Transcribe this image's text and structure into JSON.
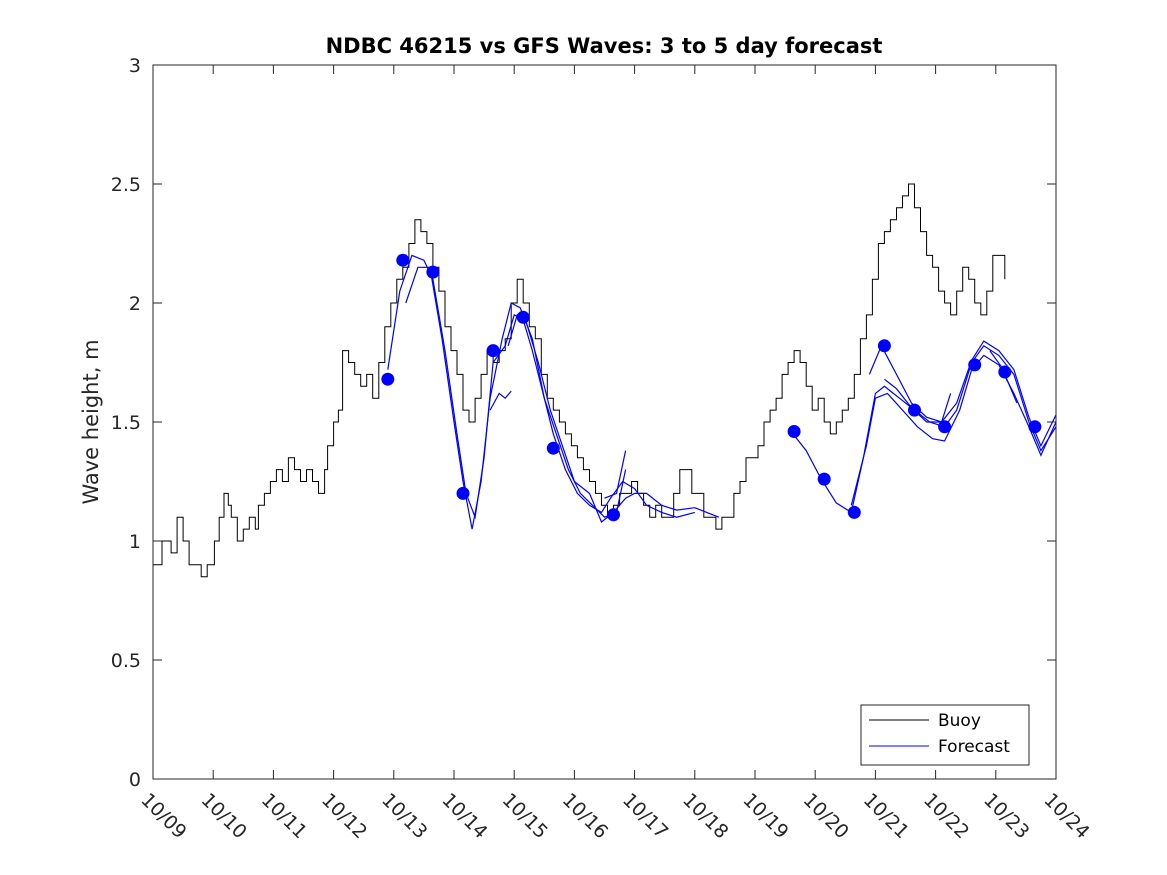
{
  "chart_data": {
    "type": "line",
    "title": "NDBC 46215 vs GFS Waves: 3 to 5 day forecast",
    "xlabel": "",
    "ylabel": "Wave height, m",
    "xlim_days": [
      0,
      15
    ],
    "ylim": [
      0,
      3
    ],
    "x_tick_labels": [
      "10/09",
      "10/10",
      "10/11",
      "10/12",
      "10/13",
      "10/14",
      "10/15",
      "10/16",
      "10/17",
      "10/18",
      "10/19",
      "10/20",
      "10/21",
      "10/22",
      "10/23",
      "10/24"
    ],
    "y_ticks": [
      0,
      0.5,
      1,
      1.5,
      2,
      2.5,
      3
    ],
    "y_tick_labels": [
      "0",
      "0.5",
      "1",
      "1.5",
      "2",
      "2.5",
      "3"
    ],
    "legend": {
      "position": "bottom-right",
      "entries": [
        "Buoy",
        "Forecast"
      ]
    },
    "colors": {
      "buoy": "#000000",
      "forecast": "#0000ff",
      "axis": "#262626"
    },
    "buoy": {
      "name": "Buoy",
      "points": [
        [
          0.0,
          0.9
        ],
        [
          0.15,
          1.0
        ],
        [
          0.3,
          0.95
        ],
        [
          0.4,
          1.1
        ],
        [
          0.5,
          1.0
        ],
        [
          0.6,
          0.9
        ],
        [
          0.7,
          0.9
        ],
        [
          0.8,
          0.85
        ],
        [
          0.9,
          0.9
        ],
        [
          0.98,
          0.9
        ],
        [
          1.02,
          1.0
        ],
        [
          1.1,
          1.1
        ],
        [
          1.18,
          1.2
        ],
        [
          1.25,
          1.15
        ],
        [
          1.3,
          1.1
        ],
        [
          1.4,
          1.0
        ],
        [
          1.5,
          1.05
        ],
        [
          1.6,
          1.1
        ],
        [
          1.7,
          1.05
        ],
        [
          1.75,
          1.15
        ],
        [
          1.85,
          1.2
        ],
        [
          1.95,
          1.25
        ],
        [
          2.05,
          1.3
        ],
        [
          2.15,
          1.25
        ],
        [
          2.25,
          1.35
        ],
        [
          2.35,
          1.3
        ],
        [
          2.45,
          1.25
        ],
        [
          2.55,
          1.3
        ],
        [
          2.65,
          1.25
        ],
        [
          2.75,
          1.2
        ],
        [
          2.85,
          1.3
        ],
        [
          2.9,
          1.4
        ],
        [
          3.0,
          1.5
        ],
        [
          3.08,
          1.55
        ],
        [
          3.15,
          1.8
        ],
        [
          3.25,
          1.75
        ],
        [
          3.35,
          1.7
        ],
        [
          3.45,
          1.65
        ],
        [
          3.55,
          1.7
        ],
        [
          3.65,
          1.6
        ],
        [
          3.75,
          1.75
        ],
        [
          3.85,
          1.9
        ],
        [
          3.95,
          2.0
        ],
        [
          4.05,
          2.1
        ],
        [
          4.15,
          2.15
        ],
        [
          4.25,
          2.25
        ],
        [
          4.35,
          2.35
        ],
        [
          4.45,
          2.3
        ],
        [
          4.55,
          2.25
        ],
        [
          4.65,
          2.15
        ],
        [
          4.75,
          2.05
        ],
        [
          4.85,
          1.9
        ],
        [
          4.95,
          1.8
        ],
        [
          5.05,
          1.7
        ],
        [
          5.15,
          1.55
        ],
        [
          5.25,
          1.5
        ],
        [
          5.35,
          1.6
        ],
        [
          5.45,
          1.7
        ],
        [
          5.55,
          1.8
        ],
        [
          5.65,
          1.75
        ],
        [
          5.75,
          1.8
        ],
        [
          5.85,
          1.85
        ],
        [
          5.95,
          2.0
        ],
        [
          6.05,
          2.1
        ],
        [
          6.15,
          2.0
        ],
        [
          6.25,
          1.9
        ],
        [
          6.35,
          1.85
        ],
        [
          6.45,
          1.7
        ],
        [
          6.55,
          1.6
        ],
        [
          6.65,
          1.55
        ],
        [
          6.75,
          1.5
        ],
        [
          6.85,
          1.45
        ],
        [
          6.95,
          1.4
        ],
        [
          7.05,
          1.35
        ],
        [
          7.15,
          1.3
        ],
        [
          7.25,
          1.25
        ],
        [
          7.35,
          1.2
        ],
        [
          7.45,
          1.15
        ],
        [
          7.55,
          1.1
        ],
        [
          7.65,
          1.15
        ],
        [
          7.75,
          1.2
        ],
        [
          7.85,
          1.2
        ],
        [
          7.95,
          1.25
        ],
        [
          8.05,
          1.2
        ],
        [
          8.15,
          1.15
        ],
        [
          8.25,
          1.1
        ],
        [
          8.35,
          1.15
        ],
        [
          8.45,
          1.1
        ],
        [
          8.55,
          1.1
        ],
        [
          8.65,
          1.2
        ],
        [
          8.75,
          1.3
        ],
        [
          8.85,
          1.3
        ],
        [
          8.95,
          1.2
        ],
        [
          9.05,
          1.2
        ],
        [
          9.15,
          1.1
        ],
        [
          9.25,
          1.1
        ],
        [
          9.35,
          1.05
        ],
        [
          9.45,
          1.1
        ],
        [
          9.55,
          1.1
        ],
        [
          9.65,
          1.2
        ],
        [
          9.75,
          1.25
        ],
        [
          9.85,
          1.35
        ],
        [
          9.95,
          1.35
        ],
        [
          10.05,
          1.4
        ],
        [
          10.15,
          1.5
        ],
        [
          10.25,
          1.55
        ],
        [
          10.35,
          1.6
        ],
        [
          10.45,
          1.7
        ],
        [
          10.55,
          1.75
        ],
        [
          10.65,
          1.8
        ],
        [
          10.75,
          1.75
        ],
        [
          10.85,
          1.65
        ],
        [
          10.95,
          1.55
        ],
        [
          11.05,
          1.6
        ],
        [
          11.15,
          1.5
        ],
        [
          11.25,
          1.45
        ],
        [
          11.35,
          1.5
        ],
        [
          11.45,
          1.55
        ],
        [
          11.55,
          1.6
        ],
        [
          11.65,
          1.7
        ],
        [
          11.75,
          1.85
        ],
        [
          11.85,
          1.95
        ],
        [
          11.95,
          2.1
        ],
        [
          12.05,
          2.25
        ],
        [
          12.15,
          2.3
        ],
        [
          12.25,
          2.35
        ],
        [
          12.35,
          2.4
        ],
        [
          12.45,
          2.45
        ],
        [
          12.55,
          2.5
        ],
        [
          12.65,
          2.4
        ],
        [
          12.75,
          2.3
        ],
        [
          12.85,
          2.2
        ],
        [
          12.95,
          2.15
        ],
        [
          13.05,
          2.05
        ],
        [
          13.15,
          2.0
        ],
        [
          13.25,
          1.95
        ],
        [
          13.35,
          2.05
        ],
        [
          13.45,
          2.15
        ],
        [
          13.55,
          2.1
        ],
        [
          13.65,
          2.0
        ],
        [
          13.75,
          1.95
        ],
        [
          13.85,
          2.05
        ],
        [
          13.95,
          2.2
        ],
        [
          14.05,
          2.2
        ],
        [
          14.15,
          2.1
        ]
      ]
    },
    "forecast": {
      "name": "Forecast",
      "runs": [
        [
          [
            3.9,
            1.72
          ],
          [
            4.1,
            2.05
          ],
          [
            4.3,
            2.2
          ],
          [
            4.5,
            2.18
          ],
          [
            4.65,
            2.1
          ],
          [
            4.85,
            1.8
          ],
          [
            5.05,
            1.45
          ],
          [
            5.2,
            1.2
          ],
          [
            5.35,
            1.1
          ],
          [
            5.5,
            1.35
          ],
          [
            5.65,
            1.75
          ],
          [
            5.85,
            1.82
          ],
          [
            6.0,
            1.95
          ],
          [
            6.15,
            1.93
          ],
          [
            6.3,
            1.8
          ],
          [
            6.5,
            1.6
          ],
          [
            6.65,
            1.45
          ],
          [
            6.85,
            1.3
          ],
          [
            7.05,
            1.2
          ],
          [
            7.25,
            1.15
          ],
          [
            7.45,
            1.12
          ],
          [
            7.6,
            1.18
          ],
          [
            7.8,
            1.25
          ],
          [
            8.0,
            1.22
          ],
          [
            8.2,
            1.15
          ],
          [
            8.45,
            1.12
          ],
          [
            8.7,
            1.1
          ],
          [
            9.0,
            1.12
          ]
        ],
        [
          [
            4.2,
            2.0
          ],
          [
            4.4,
            2.15
          ],
          [
            4.6,
            2.15
          ],
          [
            4.8,
            1.85
          ],
          [
            5.0,
            1.5
          ],
          [
            5.15,
            1.25
          ],
          [
            5.3,
            1.05
          ],
          [
            5.45,
            1.25
          ],
          [
            5.6,
            1.6
          ],
          [
            5.8,
            1.85
          ],
          [
            5.95,
            2.0
          ],
          [
            6.1,
            1.98
          ],
          [
            6.3,
            1.85
          ],
          [
            6.5,
            1.6
          ],
          [
            6.7,
            1.45
          ],
          [
            6.9,
            1.3
          ],
          [
            7.1,
            1.2
          ],
          [
            7.3,
            1.15
          ],
          [
            7.5,
            1.1
          ],
          [
            7.7,
            1.12
          ],
          [
            7.85,
            1.3
          ]
        ],
        [
          [
            5.6,
            1.55
          ],
          [
            5.75,
            1.62
          ],
          [
            5.85,
            1.6
          ],
          [
            5.95,
            1.63
          ]
        ],
        [
          [
            5.9,
            1.82
          ],
          [
            6.05,
            1.95
          ],
          [
            6.2,
            1.92
          ],
          [
            6.4,
            1.75
          ],
          [
            6.6,
            1.55
          ],
          [
            6.8,
            1.4
          ],
          [
            7.0,
            1.25
          ],
          [
            7.25,
            1.2
          ],
          [
            7.45,
            1.08
          ],
          [
            7.65,
            1.12
          ],
          [
            7.85,
            1.18
          ],
          [
            8.0,
            1.2
          ],
          [
            8.2,
            1.2
          ],
          [
            8.45,
            1.15
          ],
          [
            8.7,
            1.13
          ],
          [
            9.0,
            1.14
          ],
          [
            9.2,
            1.12
          ],
          [
            9.4,
            1.1
          ]
        ],
        [
          [
            7.5,
            1.18
          ],
          [
            7.7,
            1.2
          ],
          [
            7.85,
            1.38
          ]
        ],
        [
          [
            10.6,
            1.46
          ],
          [
            10.85,
            1.38
          ],
          [
            11.1,
            1.26
          ],
          [
            11.35,
            1.16
          ],
          [
            11.6,
            1.12
          ],
          [
            11.8,
            1.35
          ],
          [
            12.0,
            1.62
          ],
          [
            12.15,
            1.65
          ],
          [
            12.4,
            1.6
          ],
          [
            12.65,
            1.55
          ],
          [
            12.9,
            1.5
          ],
          [
            13.15,
            1.48
          ],
          [
            13.35,
            1.55
          ],
          [
            13.6,
            1.75
          ],
          [
            13.8,
            1.82
          ],
          [
            14.05,
            1.78
          ],
          [
            14.3,
            1.7
          ],
          [
            14.55,
            1.5
          ],
          [
            14.75,
            1.38
          ],
          [
            15.0,
            1.48
          ]
        ],
        [
          [
            11.6,
            1.15
          ],
          [
            11.85,
            1.4
          ],
          [
            12.0,
            1.6
          ],
          [
            12.2,
            1.62
          ],
          [
            12.45,
            1.55
          ],
          [
            12.7,
            1.48
          ],
          [
            12.95,
            1.43
          ],
          [
            13.15,
            1.42
          ],
          [
            13.4,
            1.55
          ],
          [
            13.6,
            1.72
          ],
          [
            13.8,
            1.78
          ],
          [
            14.05,
            1.74
          ],
          [
            14.3,
            1.62
          ],
          [
            14.55,
            1.48
          ],
          [
            14.75,
            1.36
          ],
          [
            15.0,
            1.5
          ]
        ],
        [
          [
            11.9,
            1.7
          ],
          [
            12.1,
            1.82
          ],
          [
            12.35,
            1.7
          ],
          [
            12.6,
            1.58
          ],
          [
            12.85,
            1.52
          ],
          [
            13.1,
            1.5
          ],
          [
            13.35,
            1.58
          ],
          [
            13.6,
            1.76
          ],
          [
            13.8,
            1.84
          ],
          [
            14.05,
            1.8
          ],
          [
            14.3,
            1.72
          ],
          [
            14.55,
            1.52
          ],
          [
            14.75,
            1.4
          ],
          [
            15.0,
            1.53
          ]
        ],
        [
          [
            12.15,
            1.68
          ],
          [
            12.35,
            1.64
          ],
          [
            12.6,
            1.56
          ],
          [
            12.85,
            1.5
          ],
          [
            13.1,
            1.5
          ],
          [
            13.25,
            1.62
          ]
        ],
        [
          [
            13.9,
            1.8
          ],
          [
            14.1,
            1.73
          ],
          [
            14.35,
            1.58
          ]
        ]
      ],
      "markers": [
        [
          3.9,
          1.68
        ],
        [
          4.15,
          2.18
        ],
        [
          4.65,
          2.13
        ],
        [
          5.15,
          1.2
        ],
        [
          5.65,
          1.8
        ],
        [
          6.15,
          1.94
        ],
        [
          6.65,
          1.39
        ],
        [
          7.65,
          1.11
        ],
        [
          10.65,
          1.46
        ],
        [
          11.15,
          1.26
        ],
        [
          11.65,
          1.12
        ],
        [
          12.15,
          1.82
        ],
        [
          12.65,
          1.55
        ],
        [
          13.15,
          1.48
        ],
        [
          13.65,
          1.74
        ],
        [
          14.15,
          1.71
        ],
        [
          14.65,
          1.48
        ]
      ]
    }
  }
}
